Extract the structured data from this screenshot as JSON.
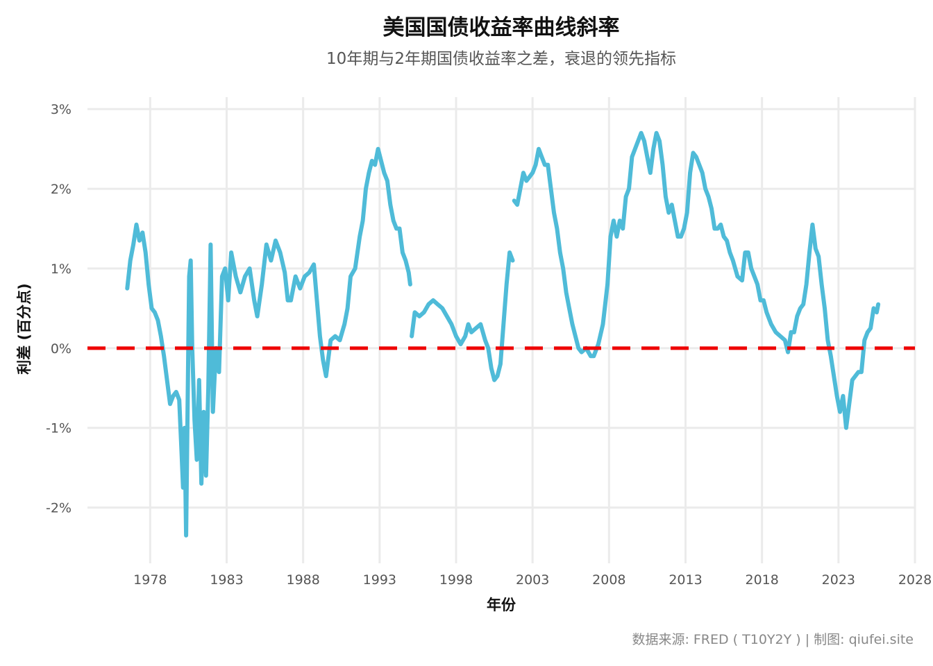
{
  "colors": {
    "series": "#4fbbd8",
    "zero_line": "#ee0000",
    "grid": "#ebebeb"
  },
  "chart_data": {
    "type": "line",
    "title": "美国国债收益率曲线斜率",
    "subtitle": "10年期与2年期国债收益率之差，衰退的领先指标",
    "xlabel": "年份",
    "ylabel": "利差 (百分点)",
    "caption": "数据来源: FRED ( T10Y2Y ) | 制图: qiufei.site",
    "xlim": [
      1973.9,
      2028
    ],
    "ylim": [
      -2.7,
      3.15
    ],
    "x_ticks": [
      1978,
      1983,
      1988,
      1993,
      1998,
      2003,
      2008,
      2013,
      2018,
      2023,
      2028
    ],
    "x_tick_labels": [
      "1978",
      "1983",
      "1988",
      "1993",
      "1998",
      "2003",
      "2008",
      "2013",
      "2018",
      "2023",
      "2028"
    ],
    "y_ticks": [
      -2,
      -1,
      0,
      1,
      2,
      3
    ],
    "y_tick_labels": [
      "-2%",
      "-1%",
      "0%",
      "1%",
      "2%",
      "3%"
    ],
    "grid": true,
    "reference_line": {
      "y": 0,
      "style": "dashed"
    },
    "series": [
      {
        "segments": [
          [
            [
              1976.5,
              0.75
            ],
            [
              1976.7,
              1.1
            ],
            [
              1976.9,
              1.3
            ],
            [
              1977.1,
              1.55
            ],
            [
              1977.3,
              1.35
            ],
            [
              1977.5,
              1.45
            ],
            [
              1977.7,
              1.2
            ],
            [
              1977.9,
              0.8
            ],
            [
              1978.1,
              0.5
            ],
            [
              1978.3,
              0.45
            ],
            [
              1978.5,
              0.35
            ],
            [
              1978.7,
              0.15
            ],
            [
              1978.9,
              -0.1
            ],
            [
              1979.1,
              -0.4
            ],
            [
              1979.3,
              -0.7
            ],
            [
              1979.5,
              -0.6
            ],
            [
              1979.7,
              -0.55
            ],
            [
              1979.9,
              -0.65
            ],
            [
              1980.05,
              -1.3
            ],
            [
              1980.15,
              -1.75
            ],
            [
              1980.25,
              -1.0
            ],
            [
              1980.35,
              -2.35
            ],
            [
              1980.45,
              -0.7
            ],
            [
              1980.55,
              0.9
            ],
            [
              1980.65,
              1.1
            ],
            [
              1980.75,
              0.0
            ],
            [
              1980.9,
              -0.9
            ],
            [
              1981.05,
              -1.4
            ],
            [
              1981.2,
              -0.4
            ],
            [
              1981.35,
              -1.7
            ],
            [
              1981.5,
              -0.8
            ],
            [
              1981.65,
              -1.6
            ],
            [
              1981.8,
              -0.5
            ],
            [
              1981.95,
              1.3
            ],
            [
              1982.1,
              -0.8
            ],
            [
              1982.3,
              0.0
            ],
            [
              1982.5,
              -0.3
            ],
            [
              1982.7,
              0.9
            ],
            [
              1982.9,
              1.0
            ],
            [
              1983.1,
              0.6
            ],
            [
              1983.3,
              1.2
            ],
            [
              1983.6,
              0.9
            ],
            [
              1983.9,
              0.7
            ],
            [
              1984.2,
              0.9
            ],
            [
              1984.5,
              1.0
            ],
            [
              1984.8,
              0.6
            ],
            [
              1985.0,
              0.4
            ],
            [
              1985.3,
              0.8
            ],
            [
              1985.6,
              1.3
            ],
            [
              1985.9,
              1.1
            ],
            [
              1986.2,
              1.35
            ],
            [
              1986.5,
              1.2
            ],
            [
              1986.8,
              0.95
            ],
            [
              1987.0,
              0.6
            ],
            [
              1987.2,
              0.6
            ],
            [
              1987.5,
              0.9
            ],
            [
              1987.8,
              0.75
            ],
            [
              1988.1,
              0.9
            ],
            [
              1988.4,
              0.95
            ],
            [
              1988.7,
              1.05
            ],
            [
              1988.9,
              0.6
            ],
            [
              1989.1,
              0.15
            ],
            [
              1989.3,
              -0.15
            ],
            [
              1989.5,
              -0.35
            ],
            [
              1989.8,
              0.1
            ],
            [
              1990.1,
              0.15
            ],
            [
              1990.4,
              0.1
            ],
            [
              1990.7,
              0.3
            ],
            [
              1990.9,
              0.5
            ],
            [
              1991.1,
              0.9
            ],
            [
              1991.4,
              1.0
            ],
            [
              1991.7,
              1.4
            ],
            [
              1991.9,
              1.6
            ],
            [
              1992.1,
              2.0
            ],
            [
              1992.3,
              2.2
            ],
            [
              1992.5,
              2.35
            ],
            [
              1992.7,
              2.3
            ],
            [
              1992.9,
              2.5
            ],
            [
              1993.1,
              2.35
            ],
            [
              1993.3,
              2.2
            ],
            [
              1993.5,
              2.1
            ],
            [
              1993.7,
              1.8
            ],
            [
              1993.9,
              1.6
            ],
            [
              1994.1,
              1.5
            ],
            [
              1994.3,
              1.5
            ],
            [
              1994.5,
              1.2
            ],
            [
              1994.7,
              1.1
            ],
            [
              1994.9,
              0.95
            ],
            [
              1995.0,
              0.8
            ]
          ],
          [
            [
              1995.1,
              0.15
            ],
            [
              1995.3,
              0.45
            ],
            [
              1995.6,
              0.4
            ],
            [
              1995.9,
              0.45
            ],
            [
              1996.2,
              0.55
            ],
            [
              1996.5,
              0.6
            ],
            [
              1996.8,
              0.55
            ],
            [
              1997.1,
              0.5
            ],
            [
              1997.4,
              0.4
            ],
            [
              1997.7,
              0.3
            ],
            [
              1998.0,
              0.15
            ],
            [
              1998.3,
              0.05
            ],
            [
              1998.6,
              0.15
            ],
            [
              1998.8,
              0.3
            ],
            [
              1999.0,
              0.2
            ],
            [
              1999.3,
              0.25
            ],
            [
              1999.6,
              0.3
            ],
            [
              1999.9,
              0.1
            ],
            [
              2000.1,
              0.0
            ],
            [
              2000.3,
              -0.25
            ],
            [
              2000.5,
              -0.4
            ],
            [
              2000.7,
              -0.35
            ],
            [
              2000.9,
              -0.2
            ],
            [
              2001.1,
              0.3
            ],
            [
              2001.3,
              0.8
            ],
            [
              2001.5,
              1.2
            ],
            [
              2001.7,
              1.1
            ]
          ],
          [
            [
              2001.8,
              1.85
            ],
            [
              2002.0,
              1.8
            ],
            [
              2002.2,
              2.0
            ],
            [
              2002.4,
              2.2
            ],
            [
              2002.6,
              2.1
            ],
            [
              2002.8,
              2.15
            ],
            [
              2003.0,
              2.2
            ],
            [
              2003.2,
              2.3
            ],
            [
              2003.4,
              2.5
            ],
            [
              2003.6,
              2.4
            ],
            [
              2003.8,
              2.3
            ],
            [
              2004.0,
              2.3
            ],
            [
              2004.2,
              2.0
            ],
            [
              2004.4,
              1.7
            ],
            [
              2004.6,
              1.5
            ],
            [
              2004.8,
              1.2
            ],
            [
              2005.0,
              1.0
            ],
            [
              2005.2,
              0.7
            ],
            [
              2005.4,
              0.5
            ],
            [
              2005.6,
              0.3
            ],
            [
              2005.8,
              0.15
            ],
            [
              2006.0,
              0.0
            ],
            [
              2006.2,
              -0.05
            ],
            [
              2006.5,
              0.0
            ],
            [
              2006.8,
              -0.1
            ],
            [
              2007.0,
              -0.1
            ],
            [
              2007.3,
              0.05
            ],
            [
              2007.6,
              0.3
            ],
            [
              2007.9,
              0.8
            ],
            [
              2008.1,
              1.4
            ],
            [
              2008.3,
              1.6
            ],
            [
              2008.5,
              1.4
            ],
            [
              2008.7,
              1.6
            ],
            [
              2008.9,
              1.5
            ],
            [
              2009.1,
              1.9
            ],
            [
              2009.3,
              2.0
            ],
            [
              2009.5,
              2.4
            ],
            [
              2009.7,
              2.5
            ],
            [
              2009.9,
              2.6
            ],
            [
              2010.1,
              2.7
            ],
            [
              2010.3,
              2.6
            ],
            [
              2010.5,
              2.4
            ],
            [
              2010.7,
              2.2
            ],
            [
              2010.9,
              2.5
            ],
            [
              2011.1,
              2.7
            ],
            [
              2011.3,
              2.6
            ],
            [
              2011.5,
              2.3
            ],
            [
              2011.7,
              1.9
            ],
            [
              2011.9,
              1.7
            ],
            [
              2012.1,
              1.8
            ],
            [
              2012.3,
              1.6
            ],
            [
              2012.5,
              1.4
            ],
            [
              2012.7,
              1.4
            ],
            [
              2012.9,
              1.5
            ],
            [
              2013.1,
              1.7
            ],
            [
              2013.3,
              2.2
            ],
            [
              2013.5,
              2.45
            ],
            [
              2013.7,
              2.4
            ],
            [
              2013.9,
              2.3
            ],
            [
              2014.1,
              2.2
            ],
            [
              2014.3,
              2.0
            ],
            [
              2014.5,
              1.9
            ],
            [
              2014.7,
              1.75
            ],
            [
              2014.9,
              1.5
            ],
            [
              2015.1,
              1.5
            ],
            [
              2015.3,
              1.55
            ],
            [
              2015.5,
              1.4
            ],
            [
              2015.7,
              1.35
            ],
            [
              2015.9,
              1.2
            ],
            [
              2016.1,
              1.1
            ],
            [
              2016.4,
              0.9
            ],
            [
              2016.7,
              0.85
            ],
            [
              2016.9,
              1.2
            ],
            [
              2017.1,
              1.2
            ],
            [
              2017.3,
              1.0
            ],
            [
              2017.5,
              0.9
            ],
            [
              2017.7,
              0.8
            ],
            [
              2017.9,
              0.6
            ],
            [
              2018.1,
              0.6
            ],
            [
              2018.3,
              0.45
            ],
            [
              2018.6,
              0.3
            ],
            [
              2018.9,
              0.2
            ],
            [
              2019.2,
              0.15
            ],
            [
              2019.5,
              0.1
            ],
            [
              2019.7,
              -0.05
            ],
            [
              2019.9,
              0.2
            ],
            [
              2020.1,
              0.2
            ],
            [
              2020.3,
              0.4
            ],
            [
              2020.5,
              0.5
            ],
            [
              2020.7,
              0.55
            ],
            [
              2020.9,
              0.8
            ],
            [
              2021.1,
              1.2
            ],
            [
              2021.3,
              1.55
            ],
            [
              2021.5,
              1.25
            ],
            [
              2021.7,
              1.15
            ],
            [
              2021.9,
              0.8
            ],
            [
              2022.1,
              0.5
            ],
            [
              2022.3,
              0.1
            ],
            [
              2022.5,
              -0.1
            ],
            [
              2022.7,
              -0.35
            ],
            [
              2022.9,
              -0.6
            ],
            [
              2023.1,
              -0.8
            ],
            [
              2023.3,
              -0.6
            ],
            [
              2023.5,
              -1.0
            ],
            [
              2023.7,
              -0.7
            ],
            [
              2023.9,
              -0.4
            ],
            [
              2024.1,
              -0.35
            ],
            [
              2024.3,
              -0.3
            ],
            [
              2024.5,
              -0.3
            ],
            [
              2024.7,
              0.1
            ],
            [
              2024.9,
              0.2
            ],
            [
              2025.1,
              0.25
            ],
            [
              2025.3,
              0.5
            ],
            [
              2025.5,
              0.45
            ],
            [
              2025.6,
              0.55
            ]
          ]
        ]
      }
    ]
  }
}
